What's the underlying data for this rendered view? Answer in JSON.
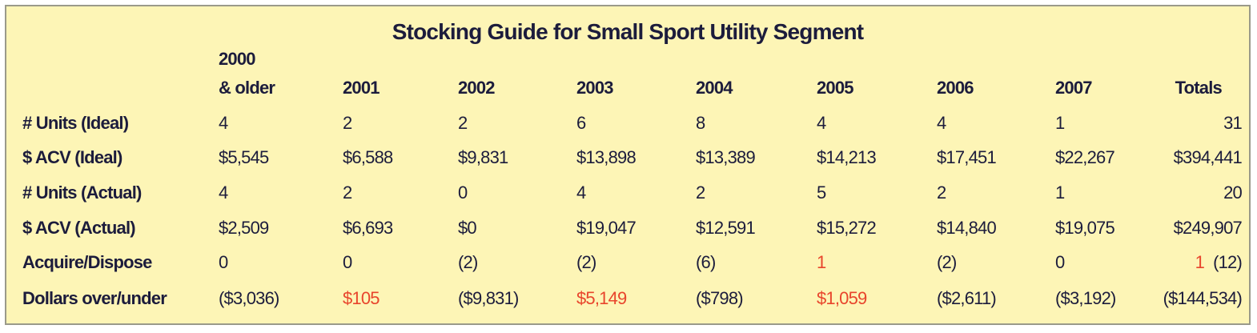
{
  "title": "Stocking Guide for Small Sport Utility Segment",
  "table": {
    "columns": [
      [
        "2000",
        "& older"
      ],
      "2001",
      "2002",
      "2003",
      "2004",
      "2005",
      "2006",
      "2007",
      "Totals"
    ],
    "rows": [
      {
        "label": "# Units (Ideal)",
        "cells": [
          "4",
          "2",
          "2",
          "6",
          "8",
          "4",
          "4",
          "1",
          "31"
        ]
      },
      {
        "label": "$ ACV (Ideal)",
        "cells": [
          "$5,545",
          "$6,588",
          "$9,831",
          "$13,898",
          "$13,389",
          "$14,213",
          "$17,451",
          "$22,267",
          "$394,441"
        ]
      },
      {
        "label": "# Units (Actual)",
        "cells": [
          "4",
          "2",
          "0",
          "4",
          "2",
          "5",
          "2",
          "1",
          "20"
        ]
      },
      {
        "label": "$ ACV (Actual)",
        "cells": [
          "$2,509",
          "$6,693",
          "$0",
          "$19,047",
          "$12,591",
          "$15,272",
          "$14,840",
          "$19,075",
          "$249,907"
        ]
      },
      {
        "label": "Acquire/Dispose",
        "cells": [
          "0",
          "0",
          "(2)",
          "(2)",
          "(6)",
          "1",
          "(2)",
          "0",
          [
            "1",
            "(12)"
          ]
        ]
      },
      {
        "label": "Dollars over/under",
        "cells": [
          "($3,036)",
          "$105",
          "($9,831)",
          "$5,149",
          "($798)",
          "$1,059",
          "($2,611)",
          "($3,192)",
          "($144,534)"
        ]
      }
    ]
  }
}
